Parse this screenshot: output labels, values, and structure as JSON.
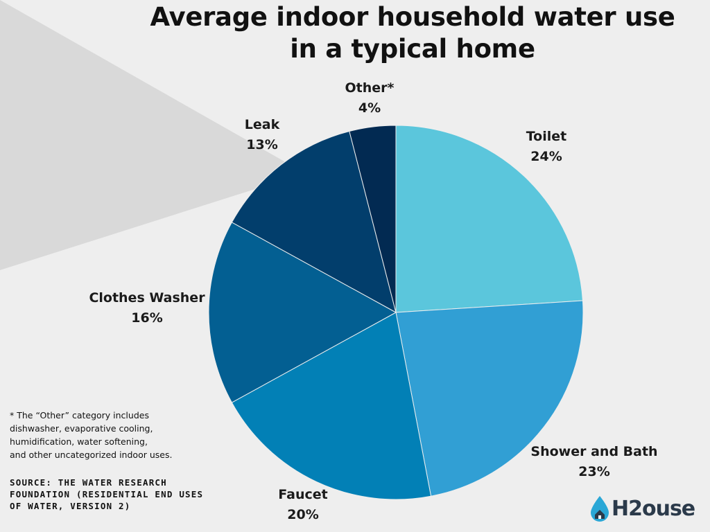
{
  "title": {
    "line1": "Average indoor household water use",
    "line2": "in a typical home"
  },
  "chart_data": {
    "type": "pie",
    "title": "Average indoor household water use in a typical home",
    "categories": [
      "Toilet",
      "Shower and Bath",
      "Faucet",
      "Clothes Washer",
      "Leak",
      "Other*"
    ],
    "values": [
      24,
      23,
      20,
      16,
      13,
      4
    ],
    "value_labels": [
      "24%",
      "23%",
      "20%",
      "16%",
      "13%",
      "4%"
    ],
    "colors": [
      "#5bc6dc",
      "#319fd4",
      "#0280b6",
      "#035f92",
      "#023e6c",
      "#022a52"
    ],
    "start_angle_deg": 0,
    "direction": "clockwise"
  },
  "footnote": {
    "lines": [
      "* The “Other” category includes",
      "dishwasher, evaporative cooling,",
      "humidification, water softening,",
      "and other uncategorized indoor uses."
    ]
  },
  "source": {
    "text": "SOURCE: THE WATER RESEARCH FOUNDATION (RESIDENTIAL END USES OF WATER, VERSION 2)"
  },
  "logo": {
    "text": "H2ouse",
    "icon": "water-drop-house-icon"
  }
}
